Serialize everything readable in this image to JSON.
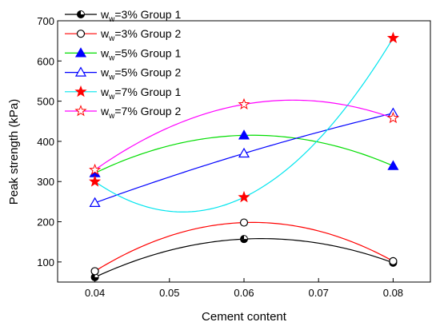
{
  "chart_data": {
    "type": "scatter",
    "title": "",
    "xlabel": "Cement content",
    "ylabel": "Peak strength (kPa)",
    "xlim": [
      0.035,
      0.085
    ],
    "ylim": [
      50,
      700
    ],
    "x_ticks": [
      0.04,
      0.05,
      0.06,
      0.07,
      0.08
    ],
    "x_tick_labels": [
      "0.04",
      "0.05",
      "0.06",
      "0.07",
      "0.08"
    ],
    "y_ticks": [
      100,
      200,
      300,
      400,
      500,
      600,
      700
    ],
    "y_tick_labels": [
      "100",
      "200",
      "300",
      "400",
      "500",
      "600",
      "700"
    ],
    "grid": false,
    "legend_position": "top-left",
    "series": [
      {
        "legend_prefix": "w",
        "legend_sub": "w",
        "legend_suffix": "=3% Group 1",
        "color": "#000000",
        "marker": "circle-half",
        "x": [
          0.04,
          0.06,
          0.08
        ],
        "y": [
          62,
          157,
          98
        ]
      },
      {
        "legend_prefix": "w",
        "legend_sub": "w",
        "legend_suffix": "=3% Group 2",
        "color": "#ff0000",
        "marker": "circle-open",
        "x": [
          0.04,
          0.06,
          0.08
        ],
        "y": [
          77,
          198,
          102
        ]
      },
      {
        "legend_prefix": "w",
        "legend_sub": "w",
        "legend_suffix": "=5% Group 1",
        "color": "#00dd00",
        "marker": "triangle-filled",
        "marker_color": "#0000ff",
        "x": [
          0.04,
          0.06,
          0.08
        ],
        "y": [
          321,
          415,
          339
        ]
      },
      {
        "legend_prefix": "w",
        "legend_sub": "w",
        "legend_suffix": "=5% Group 2",
        "color": "#0000ff",
        "marker": "triangle-open",
        "x": [
          0.04,
          0.06,
          0.08
        ],
        "y": [
          247,
          370,
          470
        ]
      },
      {
        "legend_prefix": "w",
        "legend_sub": "w",
        "legend_suffix": "=7% Group 1",
        "color": "#00e5ee",
        "marker": "star-filled",
        "marker_color": "#ff0000",
        "x": [
          0.04,
          0.06,
          0.08
        ],
        "y": [
          300,
          261,
          657
        ]
      },
      {
        "legend_prefix": "w",
        "legend_sub": "w",
        "legend_suffix": "=7% Group 2",
        "color": "#ff00ff",
        "marker": "star-open",
        "marker_color": "#ff0000",
        "x": [
          0.04,
          0.06,
          0.08
        ],
        "y": [
          329,
          492,
          458
        ]
      }
    ]
  }
}
